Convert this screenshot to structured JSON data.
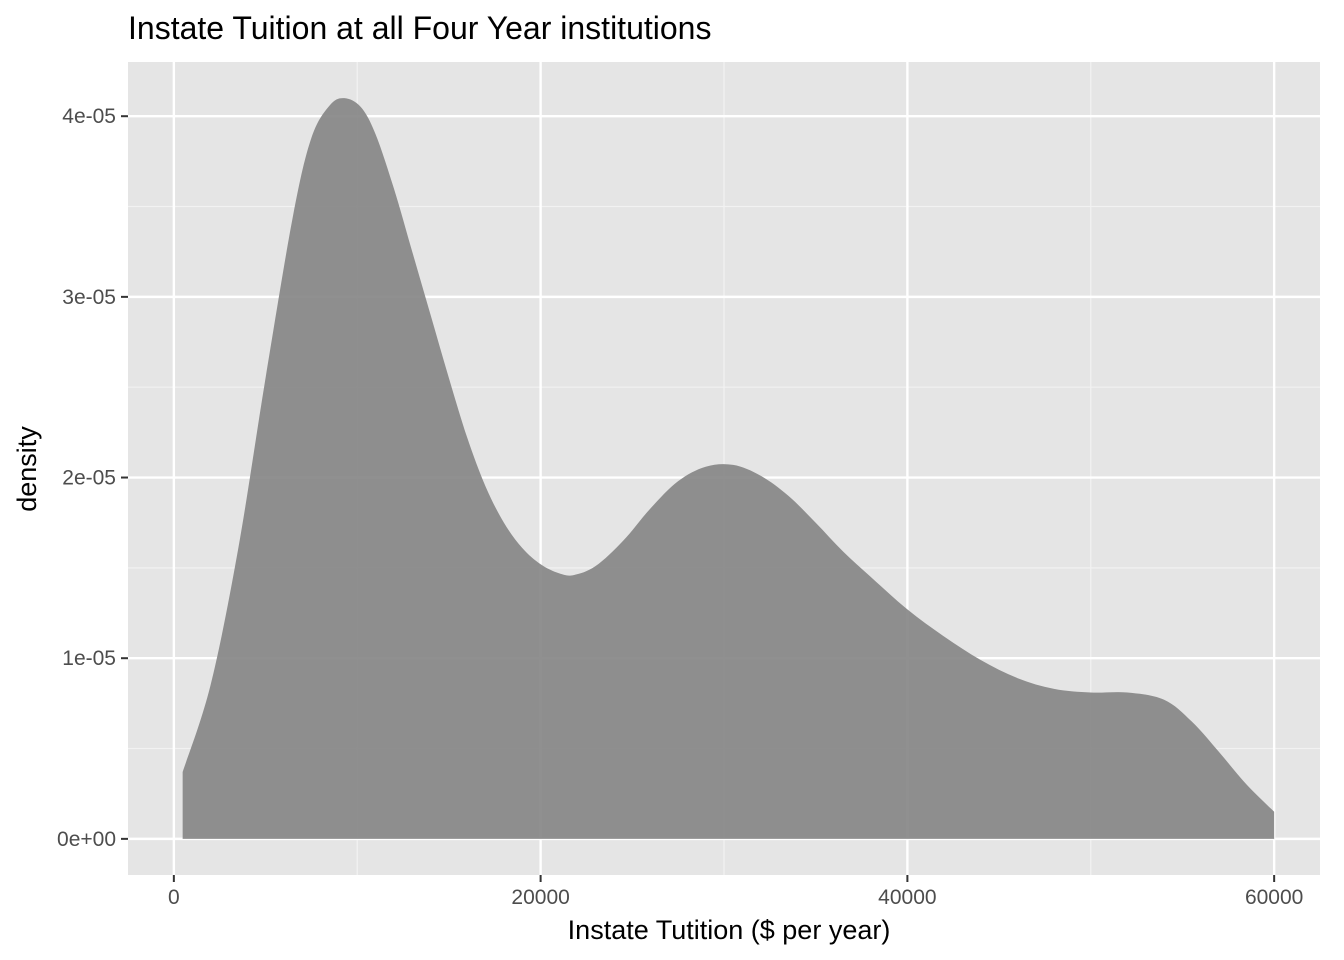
{
  "chart_data": {
    "type": "area",
    "title": "Instate Tuition at all Four Year institutions",
    "xlabel": "Instate Tutition ($ per year)",
    "ylabel": "density",
    "xlim": [
      -2500,
      62500
    ],
    "ylim": [
      -2e-06,
      4.3e-05
    ],
    "x_ticks": [
      0,
      20000,
      40000,
      60000
    ],
    "x_tick_labels": [
      "0",
      "20000",
      "40000",
      "60000"
    ],
    "y_ticks": [
      0,
      1e-05,
      2e-05,
      3e-05,
      4e-05
    ],
    "y_tick_labels": [
      "0e+00",
      "1e-05",
      "2e-05",
      "3e-05",
      "4e-05"
    ],
    "grid": true,
    "fill_color": "#878787",
    "panel_color": "#e5e5e5",
    "series": [
      {
        "x": [
          480,
          2000,
          3500,
          5000,
          6500,
          7500,
          8500,
          9300,
          10200,
          11000,
          12000,
          13000,
          14000,
          15000,
          16000,
          17000,
          18000,
          19000,
          20000,
          21000,
          21800,
          23000,
          24500,
          26000,
          27500,
          29000,
          30500,
          32000,
          33500,
          35000,
          36500,
          38000,
          40000,
          42000,
          44000,
          46000,
          48000,
          50000,
          52000,
          54000,
          55500,
          57000,
          58500,
          60000
        ],
        "y": [
          3.7e-06,
          8.5e-06,
          1.6e-05,
          2.55e-05,
          3.45e-05,
          3.88e-05,
          4.06e-05,
          4.1e-05,
          4.05e-05,
          3.9e-05,
          3.6e-05,
          3.25e-05,
          2.9e-05,
          2.55e-05,
          2.22e-05,
          1.95e-05,
          1.75e-05,
          1.61e-05,
          1.52e-05,
          1.47e-05,
          1.46e-05,
          1.51e-05,
          1.65e-05,
          1.83e-05,
          1.98e-05,
          2.06e-05,
          2.07e-05,
          2.01e-05,
          1.9e-05,
          1.75e-05,
          1.59e-05,
          1.45e-05,
          1.27e-05,
          1.12e-05,
          9.9e-06,
          8.9e-06,
          8.3e-06,
          8.1e-06,
          8.1e-06,
          7.7e-06,
          6.5e-06,
          4.8e-06,
          3e-06,
          1.5e-06
        ]
      }
    ]
  }
}
